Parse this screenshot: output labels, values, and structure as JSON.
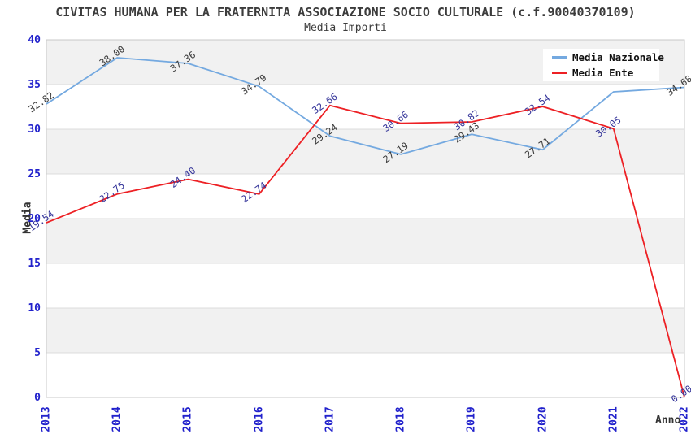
{
  "header": {
    "title": "CIVITAS HUMANA PER LA FRATERNITA ASSOCIAZIONE SOCIO CULTURALE (c.f.90040370109)",
    "subtitle": "Media Importi"
  },
  "axes": {
    "y_label": "Media",
    "x_label": "Anno",
    "y_ticks": [
      0,
      5,
      10,
      15,
      20,
      25,
      30,
      35,
      40
    ],
    "tick_color": "#2222cc"
  },
  "legend": {
    "position": "top-right",
    "items": [
      {
        "label": "Media Nazionale",
        "color": "#74a9e0"
      },
      {
        "label": "Media Ente",
        "color": "#ed2024"
      }
    ]
  },
  "chart_data": {
    "type": "line",
    "title": "CIVITAS HUMANA PER LA FRATERNITA ASSOCIAZIONE SOCIO CULTURALE (c.f.90040370109)",
    "subtitle": "Media Importi",
    "xlabel": "Anno",
    "ylabel": "Media",
    "ylim": [
      0,
      40
    ],
    "grid": "horizontal-bands",
    "band_fill": "#f1f1f1",
    "gridline_color": "#dcdcdc",
    "border_color": "#c8c8c8",
    "legend_position": "top-right",
    "categories": [
      "2013",
      "2014",
      "2015",
      "2016",
      "2017",
      "2018",
      "2019",
      "2020",
      "2021",
      "2022"
    ],
    "series": [
      {
        "name": "Media Nazionale",
        "color": "#74a9e0",
        "label_color": "#3a3a3a",
        "values": [
          32.82,
          38.0,
          37.36,
          34.79,
          29.24,
          27.19,
          29.43,
          27.71,
          34.18,
          34.68
        ],
        "point_labels": [
          "32.82",
          "38.00",
          "37.36",
          "34.79",
          "29.24",
          "27.19",
          "29.43",
          "27.71",
          "",
          "34.68"
        ]
      },
      {
        "name": "Media Ente",
        "color": "#ed2024",
        "label_color": "#333399",
        "values": [
          19.54,
          22.75,
          24.4,
          22.74,
          32.66,
          30.66,
          30.82,
          32.54,
          30.05,
          0.0
        ],
        "point_labels": [
          "19.54",
          "22.75",
          "24.40",
          "22.74",
          "32.66",
          "30.66",
          "30.82",
          "32.54",
          "30.05",
          "0.00"
        ]
      }
    ]
  }
}
